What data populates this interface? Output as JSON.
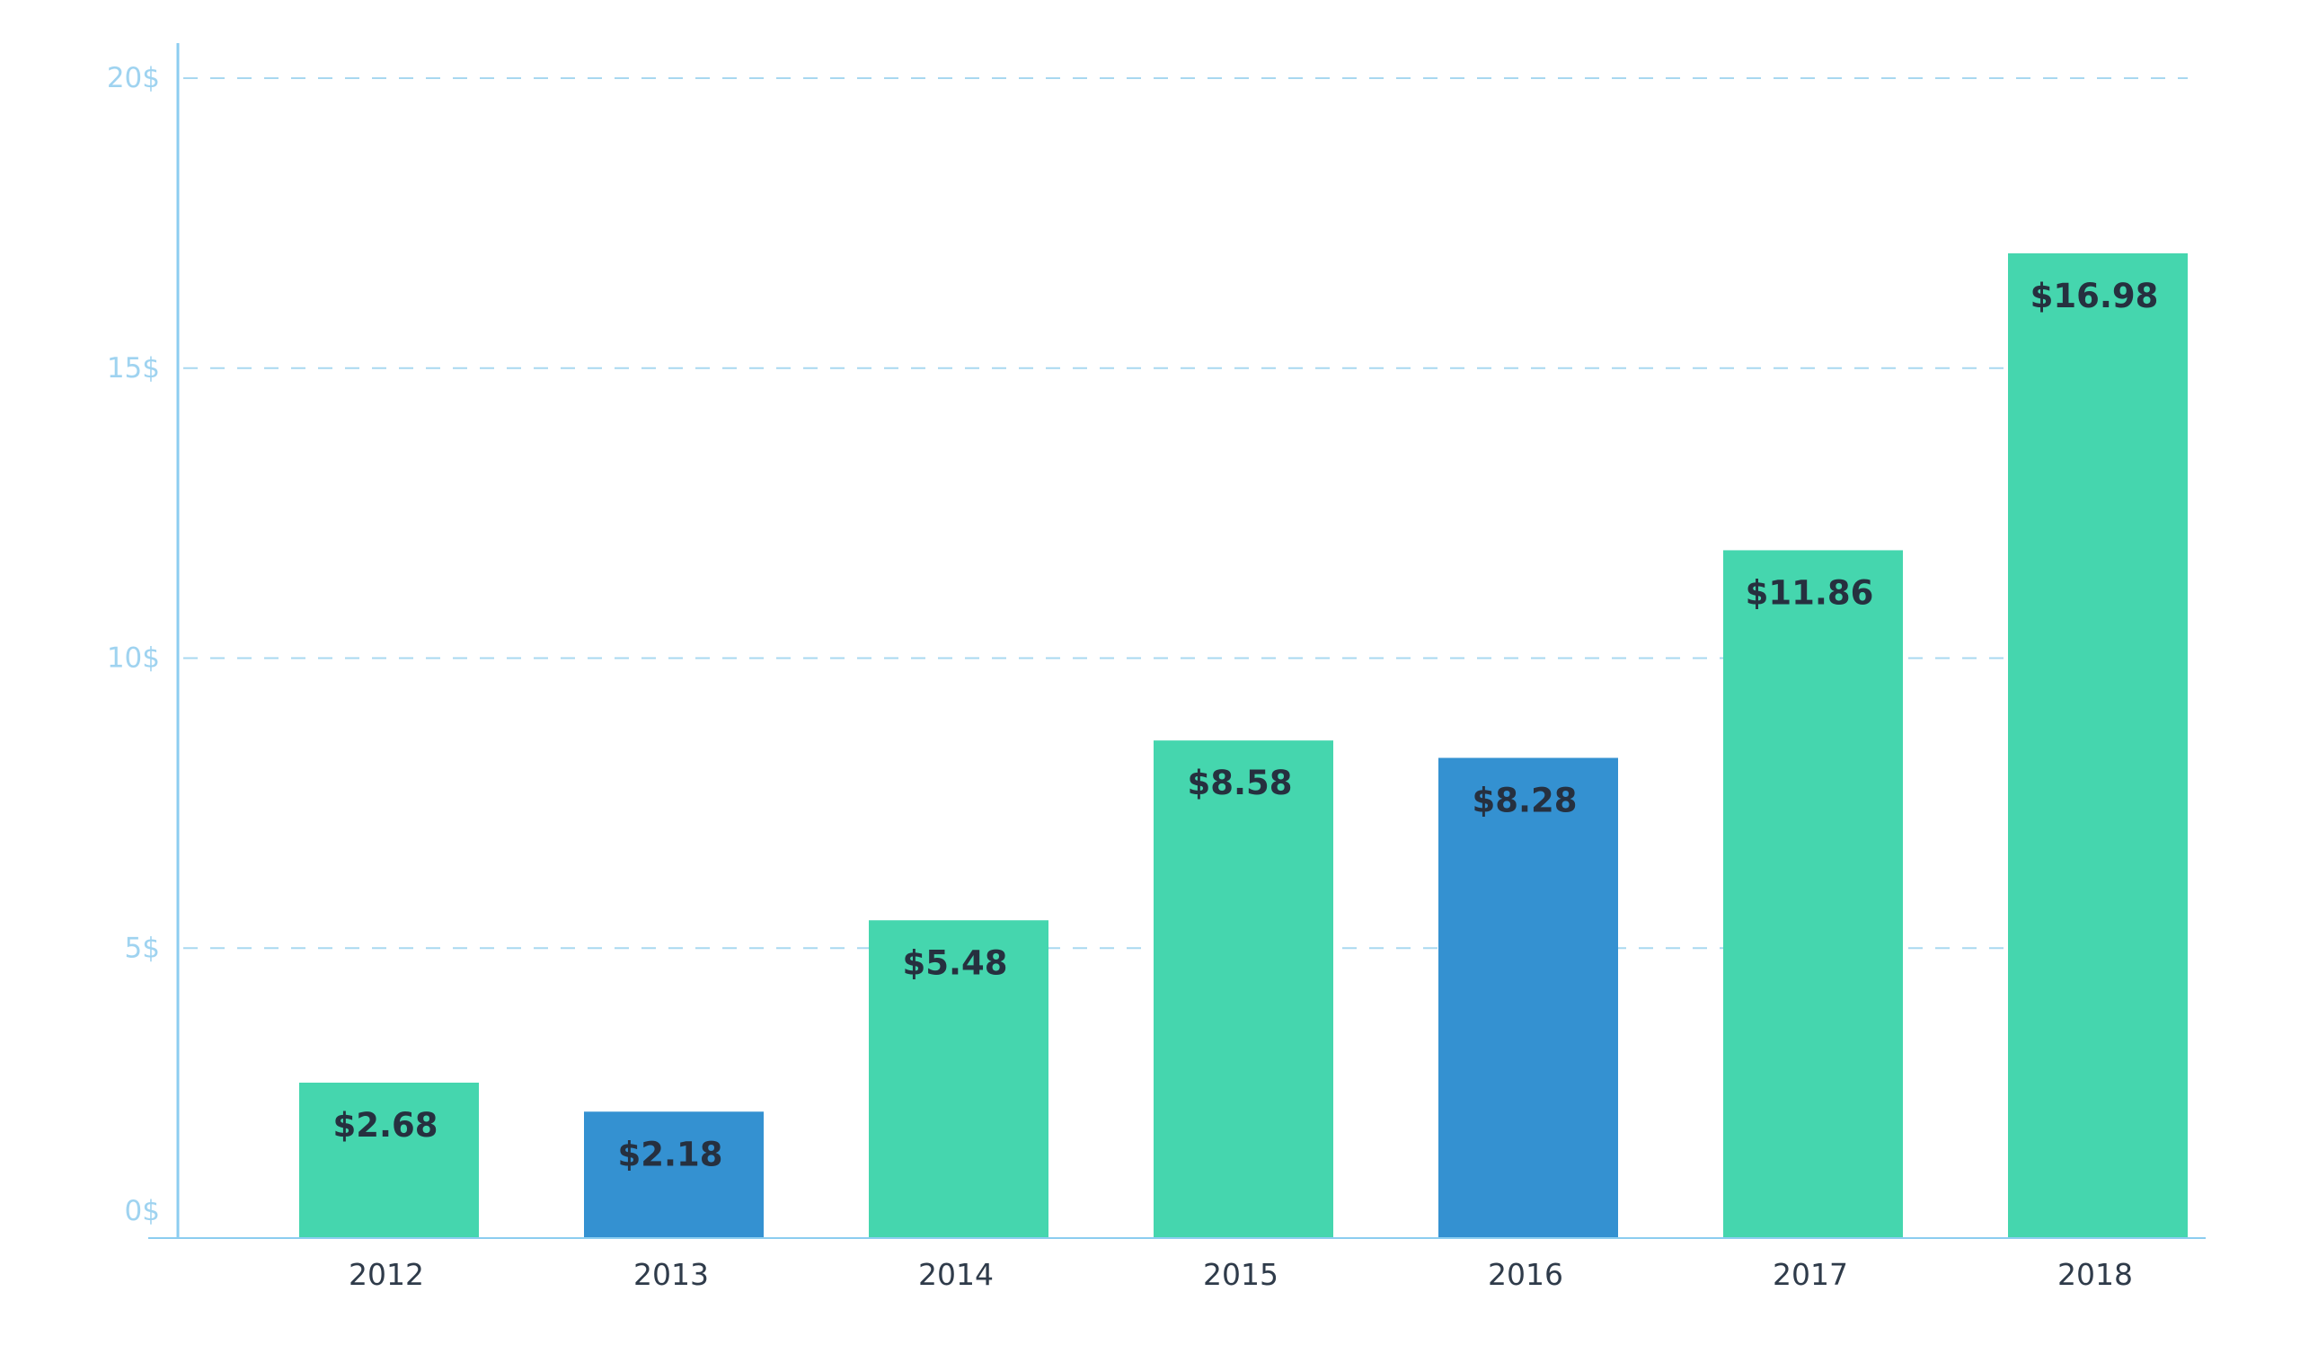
{
  "chart_data": {
    "type": "bar",
    "categories": [
      "2012",
      "2013",
      "2014",
      "2015",
      "2016",
      "2017",
      "2018"
    ],
    "values": [
      2.68,
      2.18,
      5.48,
      8.58,
      8.28,
      11.86,
      16.98
    ],
    "data_labels": [
      "$2.68",
      "$2.18",
      "$5.48",
      "$8.58",
      "$8.28",
      "$11.86",
      "$16.98"
    ],
    "bar_colors": [
      "#45d6ae",
      "#3491d1",
      "#45d6ae",
      "#45d6ae",
      "#3491d1",
      "#45d6ae",
      "#45d6ae"
    ],
    "yticks": [
      0,
      5,
      10,
      15,
      20
    ],
    "ytick_labels": [
      "0$",
      "5$",
      "10$",
      "15$",
      "20$"
    ],
    "ylim": [
      0,
      20
    ],
    "grid": "horizontal dashed",
    "title": "",
    "xlabel": "",
    "ylabel": "",
    "colors": {
      "axis": "#8ccdf0",
      "grid": "#a8d8f0",
      "tick_label": "#9fd3f0",
      "year_label": "#2f3b4a",
      "value_label": "#26303f"
    }
  }
}
